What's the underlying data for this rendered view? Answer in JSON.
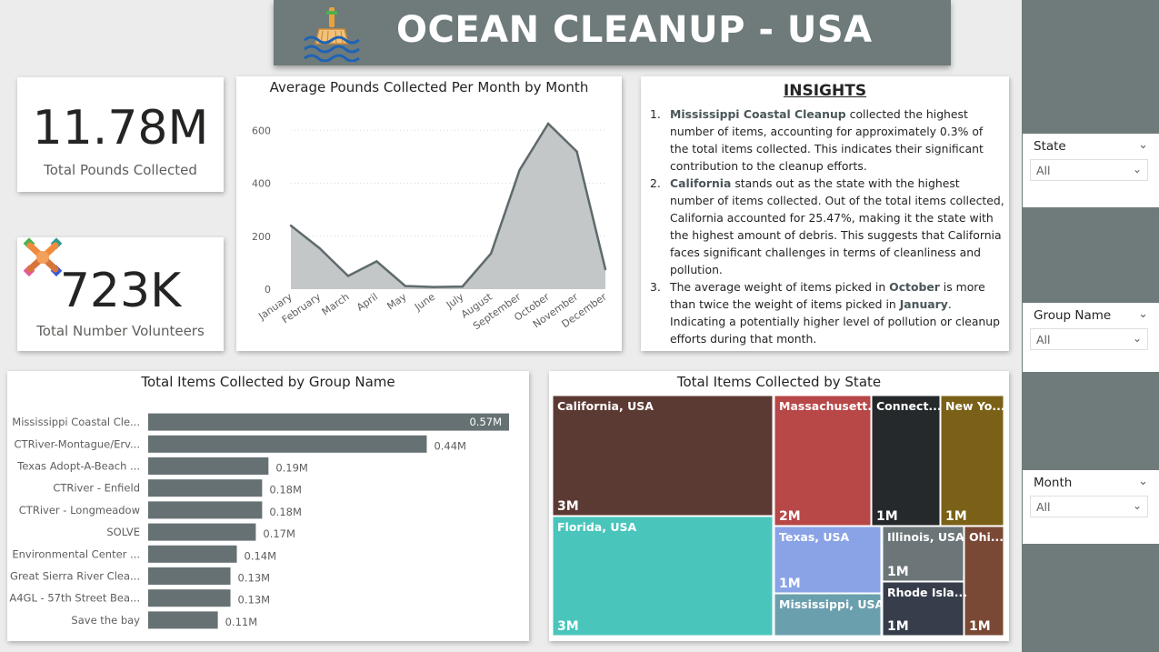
{
  "header": {
    "title": "OCEAN CLEANUP - USA",
    "logo_icon": "water-cleaning-broom-icon"
  },
  "kpis": {
    "total_pounds": {
      "value": "11.78M",
      "label": "Total Pounds Collected"
    },
    "total_volunteers": {
      "value": "723K",
      "label": "Total Number Volunteers",
      "icon": "teamwork-hands-icon"
    }
  },
  "insights": {
    "title": "INSIGHTS",
    "items": [
      {
        "num": "1.",
        "bold": "Mississippi Coastal Cleanup",
        "text": " collected the highest number of items, accounting for approximately 0.3% of the total items collected. This indicates their significant contribution to the cleanup efforts."
      },
      {
        "num": "2.",
        "bold": "California",
        "text": " stands out as the state with the highest number of items collected. Out of the total items collected, California accounted for 25.47%, making it the state with the highest amount of debris. This suggests that California faces significant challenges in terms of cleanliness and pollution."
      },
      {
        "num": "3.",
        "pre": "The average weight of items picked in ",
        "bold": "October",
        "mid": " is more than twice the weight of items picked in ",
        "bold2": "January",
        "text": ". Indicating a potentially higher level of pollution or cleanup efforts during that month."
      }
    ]
  },
  "slicers": [
    {
      "label": "State",
      "value": "All"
    },
    {
      "label": "Group Name",
      "value": "All"
    },
    {
      "label": "Month",
      "value": "All"
    }
  ],
  "colors": {
    "sidebar": "#6f7a7b",
    "area_fill": "#c3c7c8",
    "area_line": "#5f6a6b",
    "bar": "#667174"
  },
  "chart_data": [
    {
      "type": "area",
      "title": "Average Pounds Collected Per Month by Month",
      "categories": [
        "January",
        "February",
        "March",
        "April",
        "May",
        "June",
        "July",
        "August",
        "September",
        "October",
        "November",
        "December"
      ],
      "values": [
        240,
        155,
        50,
        105,
        12,
        8,
        10,
        135,
        450,
        625,
        520,
        75
      ],
      "ylim": [
        0,
        680
      ],
      "yticks": [
        "0",
        "200",
        "400",
        "600"
      ],
      "ytick_values": [
        0,
        200,
        400,
        600
      ],
      "grid": true
    },
    {
      "type": "bar",
      "orientation": "horizontal",
      "title": "Total Items Collected by Group Name",
      "categories": [
        "Mississippi Coastal Cle...",
        "CTRiver-Montague/Erv...",
        "Texas Adopt-A-Beach ...",
        "CTRiver - Enfield",
        "CTRiver - Longmeadow",
        "SOLVE",
        "Environmental Center ...",
        "Great Sierra River Clea...",
        "A4GL - 57th Street Bea...",
        "Save the bay"
      ],
      "values": [
        0.57,
        0.44,
        0.19,
        0.18,
        0.18,
        0.17,
        0.14,
        0.13,
        0.13,
        0.11
      ],
      "data_labels": [
        "0.57M",
        "0.44M",
        "0.19M",
        "0.18M",
        "0.18M",
        "0.17M",
        "0.14M",
        "0.13M",
        "0.13M",
        "0.11M"
      ],
      "unit": "M"
    },
    {
      "type": "treemap",
      "title": "Total Items Collected by State",
      "items": [
        {
          "label": "California, USA",
          "value_label": "3M",
          "color": "#5c3a34"
        },
        {
          "label": "Florida, USA",
          "value_label": "3M",
          "color": "#4ac5bb"
        },
        {
          "label": "Massachusett...",
          "value_label": "2M",
          "color": "#b84748"
        },
        {
          "label": "Connect...",
          "value_label": "1M",
          "color": "#25292b"
        },
        {
          "label": "New Yo...",
          "value_label": "1M",
          "color": "#7b6118"
        },
        {
          "label": "Texas, USA",
          "value_label": "1M",
          "color": "#8aa3e6"
        },
        {
          "label": "Illinois, USA",
          "value_label": "1M",
          "color": "#6c7678"
        },
        {
          "label": "Ohi...",
          "value_label": "1M",
          "color": "#7a4935"
        },
        {
          "label": "Mississippi, USA",
          "value_label": "",
          "color": "#6a9fae"
        },
        {
          "label": "Rhode Isla...",
          "value_label": "1M",
          "color": "#373d4a"
        }
      ]
    }
  ]
}
